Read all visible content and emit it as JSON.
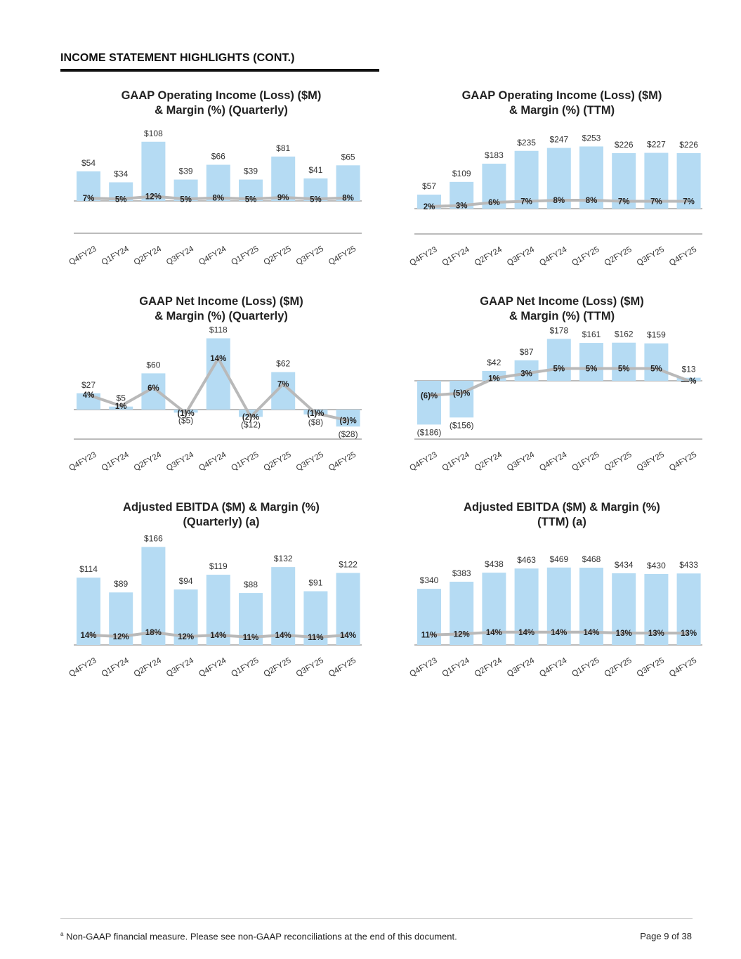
{
  "header": {
    "title": "INCOME STATEMENT HIGHLIGHTS (CONT.)"
  },
  "colors": {
    "bar": "#b5dbf3",
    "margin_line": "#b9b9b9",
    "axis": "#777777",
    "rule": "#111111"
  },
  "chart_data": [
    {
      "type": "bar",
      "title": [
        "GAAP Operating Income (Loss) ($M)",
        "& Margin (%) (Quarterly)"
      ],
      "categories": [
        "Q4FY23",
        "Q1FY24",
        "Q2FY24",
        "Q3FY24",
        "Q4FY24",
        "Q1FY25",
        "Q2FY25",
        "Q3FY25",
        "Q4FY25"
      ],
      "series": [
        {
          "name": "GAAP Operating Income ($M)",
          "values": [
            54,
            34,
            108,
            39,
            66,
            39,
            81,
            41,
            65
          ],
          "labels": [
            "$54",
            "$34",
            "$108",
            "$39",
            "$66",
            "$39",
            "$81",
            "$41",
            "$65"
          ]
        },
        {
          "name": "Margin (%)",
          "values": [
            7,
            5,
            12,
            5,
            8,
            5,
            9,
            5,
            8
          ],
          "labels": [
            "7%",
            "5%",
            "12%",
            "5%",
            "8%",
            "5%",
            "9%",
            "5%",
            "8%"
          ]
        }
      ],
      "xlabel": "",
      "ylabel": ""
    },
    {
      "type": "bar",
      "title": [
        "GAAP Operating Income (Loss) ($M)",
        "& Margin (%) (TTM)"
      ],
      "categories": [
        "Q4FY23",
        "Q1FY24",
        "Q2FY24",
        "Q3FY24",
        "Q4FY24",
        "Q1FY25",
        "Q2FY25",
        "Q3FY25",
        "Q4FY25"
      ],
      "series": [
        {
          "name": "GAAP Operating Income ($M)",
          "values": [
            57,
            109,
            183,
            235,
            247,
            253,
            226,
            227,
            226
          ],
          "labels": [
            "$57",
            "$109",
            "$183",
            "$235",
            "$247",
            "$253",
            "$226",
            "$227",
            "$226"
          ]
        },
        {
          "name": "Margin (%)",
          "values": [
            2,
            3,
            6,
            7,
            8,
            8,
            7,
            7,
            7
          ],
          "labels": [
            "2%",
            "3%",
            "6%",
            "7%",
            "8%",
            "8%",
            "7%",
            "7%",
            "7%"
          ]
        }
      ],
      "xlabel": "",
      "ylabel": ""
    },
    {
      "type": "bar",
      "title": [
        "GAAP Net Income (Loss) ($M)",
        "& Margin (%) (Quarterly)"
      ],
      "categories": [
        "Q4FY23",
        "Q1FY24",
        "Q2FY24",
        "Q3FY24",
        "Q4FY24",
        "Q1FY25",
        "Q2FY25",
        "Q3FY25",
        "Q4FY25"
      ],
      "series": [
        {
          "name": "GAAP Net Income ($M)",
          "values": [
            27,
            5,
            60,
            -5,
            118,
            -12,
            62,
            -8,
            -28
          ],
          "labels": [
            "$27",
            "$5",
            "$60",
            "($5)",
            "$118",
            "($12)",
            "$62",
            "($8)",
            "($28)"
          ]
        },
        {
          "name": "Margin (%)",
          "values": [
            4,
            1,
            6,
            -1,
            14,
            -2,
            7,
            -1,
            -3
          ],
          "labels": [
            "4%",
            "1%",
            "6%",
            "(1)%",
            "14%",
            "(2)%",
            "7%",
            "(1)%",
            "(3)%"
          ]
        }
      ],
      "xlabel": "",
      "ylabel": ""
    },
    {
      "type": "bar",
      "title": [
        "GAAP Net Income (Loss) ($M)",
        "& Margin (%) (TTM)"
      ],
      "categories": [
        "Q4FY23",
        "Q1FY24",
        "Q2FY24",
        "Q3FY24",
        "Q4FY24",
        "Q1FY25",
        "Q2FY25",
        "Q3FY25",
        "Q4FY25"
      ],
      "series": [
        {
          "name": "GAAP Net Income ($M)",
          "values": [
            -186,
            -156,
            42,
            87,
            178,
            161,
            162,
            159,
            13
          ],
          "labels": [
            "($186)",
            "($156)",
            "$42",
            "$87",
            "$178",
            "$161",
            "$162",
            "$159",
            "$13"
          ]
        },
        {
          "name": "Margin (%)",
          "values": [
            -6,
            -5,
            1,
            3,
            5,
            5,
            5,
            5,
            0
          ],
          "labels": [
            "(6)%",
            "(5)%",
            "1%",
            "3%",
            "5%",
            "5%",
            "5%",
            "5%",
            "—%"
          ]
        }
      ],
      "xlabel": "",
      "ylabel": ""
    },
    {
      "type": "bar",
      "title": [
        "Adjusted EBITDA ($M) & Margin (%)",
        "(Quarterly) (a)"
      ],
      "categories": [
        "Q4FY23",
        "Q1FY24",
        "Q2FY24",
        "Q3FY24",
        "Q4FY24",
        "Q1FY25",
        "Q2FY25",
        "Q3FY25",
        "Q4FY25"
      ],
      "series": [
        {
          "name": "Adjusted EBITDA ($M)",
          "values": [
            114,
            89,
            166,
            94,
            119,
            88,
            132,
            91,
            122
          ],
          "labels": [
            "$114",
            "$89",
            "$166",
            "$94",
            "$119",
            "$88",
            "$132",
            "$91",
            "$122"
          ]
        },
        {
          "name": "Margin (%)",
          "values": [
            14,
            12,
            18,
            12,
            14,
            11,
            14,
            11,
            14
          ],
          "labels": [
            "14%",
            "12%",
            "18%",
            "12%",
            "14%",
            "11%",
            "14%",
            "11%",
            "14%"
          ]
        }
      ],
      "xlabel": "",
      "ylabel": ""
    },
    {
      "type": "bar",
      "title": [
        "Adjusted EBITDA ($M) & Margin (%)",
        "(TTM) (a)"
      ],
      "categories": [
        "Q4FY23",
        "Q1FY24",
        "Q2FY24",
        "Q3FY24",
        "Q4FY24",
        "Q1FY25",
        "Q2FY25",
        "Q3FY25",
        "Q4FY25"
      ],
      "series": [
        {
          "name": "Adjusted EBITDA ($M)",
          "values": [
            340,
            383,
            438,
            463,
            469,
            468,
            434,
            430,
            433
          ],
          "labels": [
            "$340",
            "$383",
            "$438",
            "$463",
            "$469",
            "$468",
            "$434",
            "$430",
            "$433"
          ]
        },
        {
          "name": "Margin (%)",
          "values": [
            11,
            12,
            14,
            14,
            14,
            14,
            13,
            13,
            13
          ],
          "labels": [
            "11%",
            "12%",
            "14%",
            "14%",
            "14%",
            "14%",
            "13%",
            "13%",
            "13%"
          ]
        }
      ],
      "xlabel": "",
      "ylabel": ""
    }
  ],
  "footer": {
    "footnote_marker": "a",
    "footnote": "Non-GAAP financial measure. Please see non-GAAP reconciliations at the end of this document.",
    "page": "Page 9 of 38"
  }
}
